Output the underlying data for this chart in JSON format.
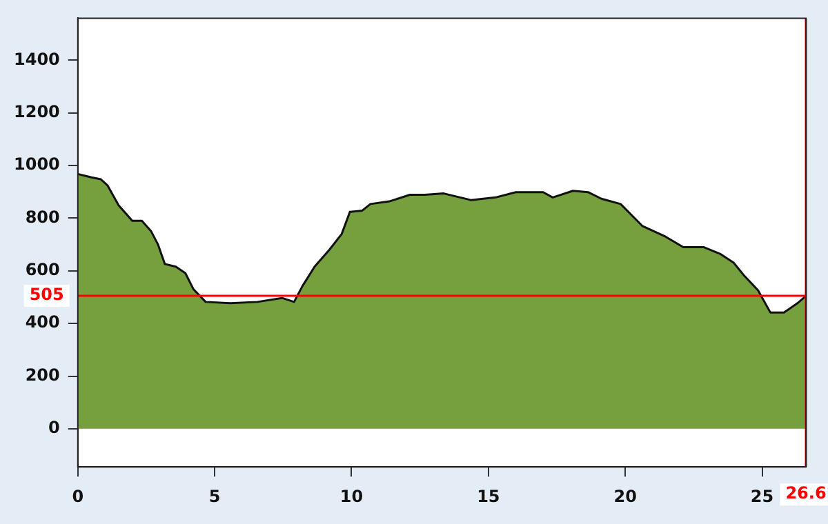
{
  "chart_data": {
    "type": "area",
    "x": [
      0,
      0.5,
      0.84,
      1.09,
      1.49,
      1.99,
      2.34,
      2.68,
      2.93,
      3.18,
      3.58,
      3.93,
      4.22,
      4.67,
      5.57,
      6.56,
      7.46,
      7.9,
      8.2,
      8.65,
      9.19,
      9.64,
      9.94,
      10.39,
      10.69,
      11.38,
      12.13,
      12.67,
      13.37,
      14.36,
      15.26,
      16.0,
      17.0,
      17.35,
      18.09,
      18.64,
      19.13,
      19.83,
      20.63,
      21.47,
      22.12,
      22.86,
      23.46,
      23.96,
      24.35,
      24.85,
      25.3,
      25.8,
      26.29,
      26.6
    ],
    "series": [
      {
        "color": "#76a03e",
        "values": [
          968,
          955,
          948,
          924,
          849,
          790,
          790,
          750,
          700,
          626,
          616,
          591,
          531,
          482,
          477,
          482,
          497,
          482,
          541,
          616,
          680,
          740,
          824,
          829,
          854,
          864,
          889,
          889,
          894,
          869,
          879,
          899,
          899,
          879,
          904,
          899,
          874,
          854,
          770,
          730,
          690,
          690,
          665,
          631,
          581,
          526,
          442,
          442,
          477,
          505
        ]
      }
    ],
    "xlim": [
      0,
      26.6
    ],
    "xticks": [
      0,
      5,
      10,
      15,
      20,
      25
    ],
    "ylim": [
      -145,
      1560
    ],
    "yticks": [
      0,
      200,
      400,
      600,
      800,
      1000,
      1200,
      1400
    ],
    "ref_lines": [
      {
        "axis": "y",
        "value": 505,
        "label": "505",
        "color": "#ff0000"
      },
      {
        "axis": "x",
        "value": 26.6,
        "label": "26.6",
        "color": "#ff0000"
      }
    ],
    "grid": false,
    "legend": false,
    "marker": "none"
  }
}
